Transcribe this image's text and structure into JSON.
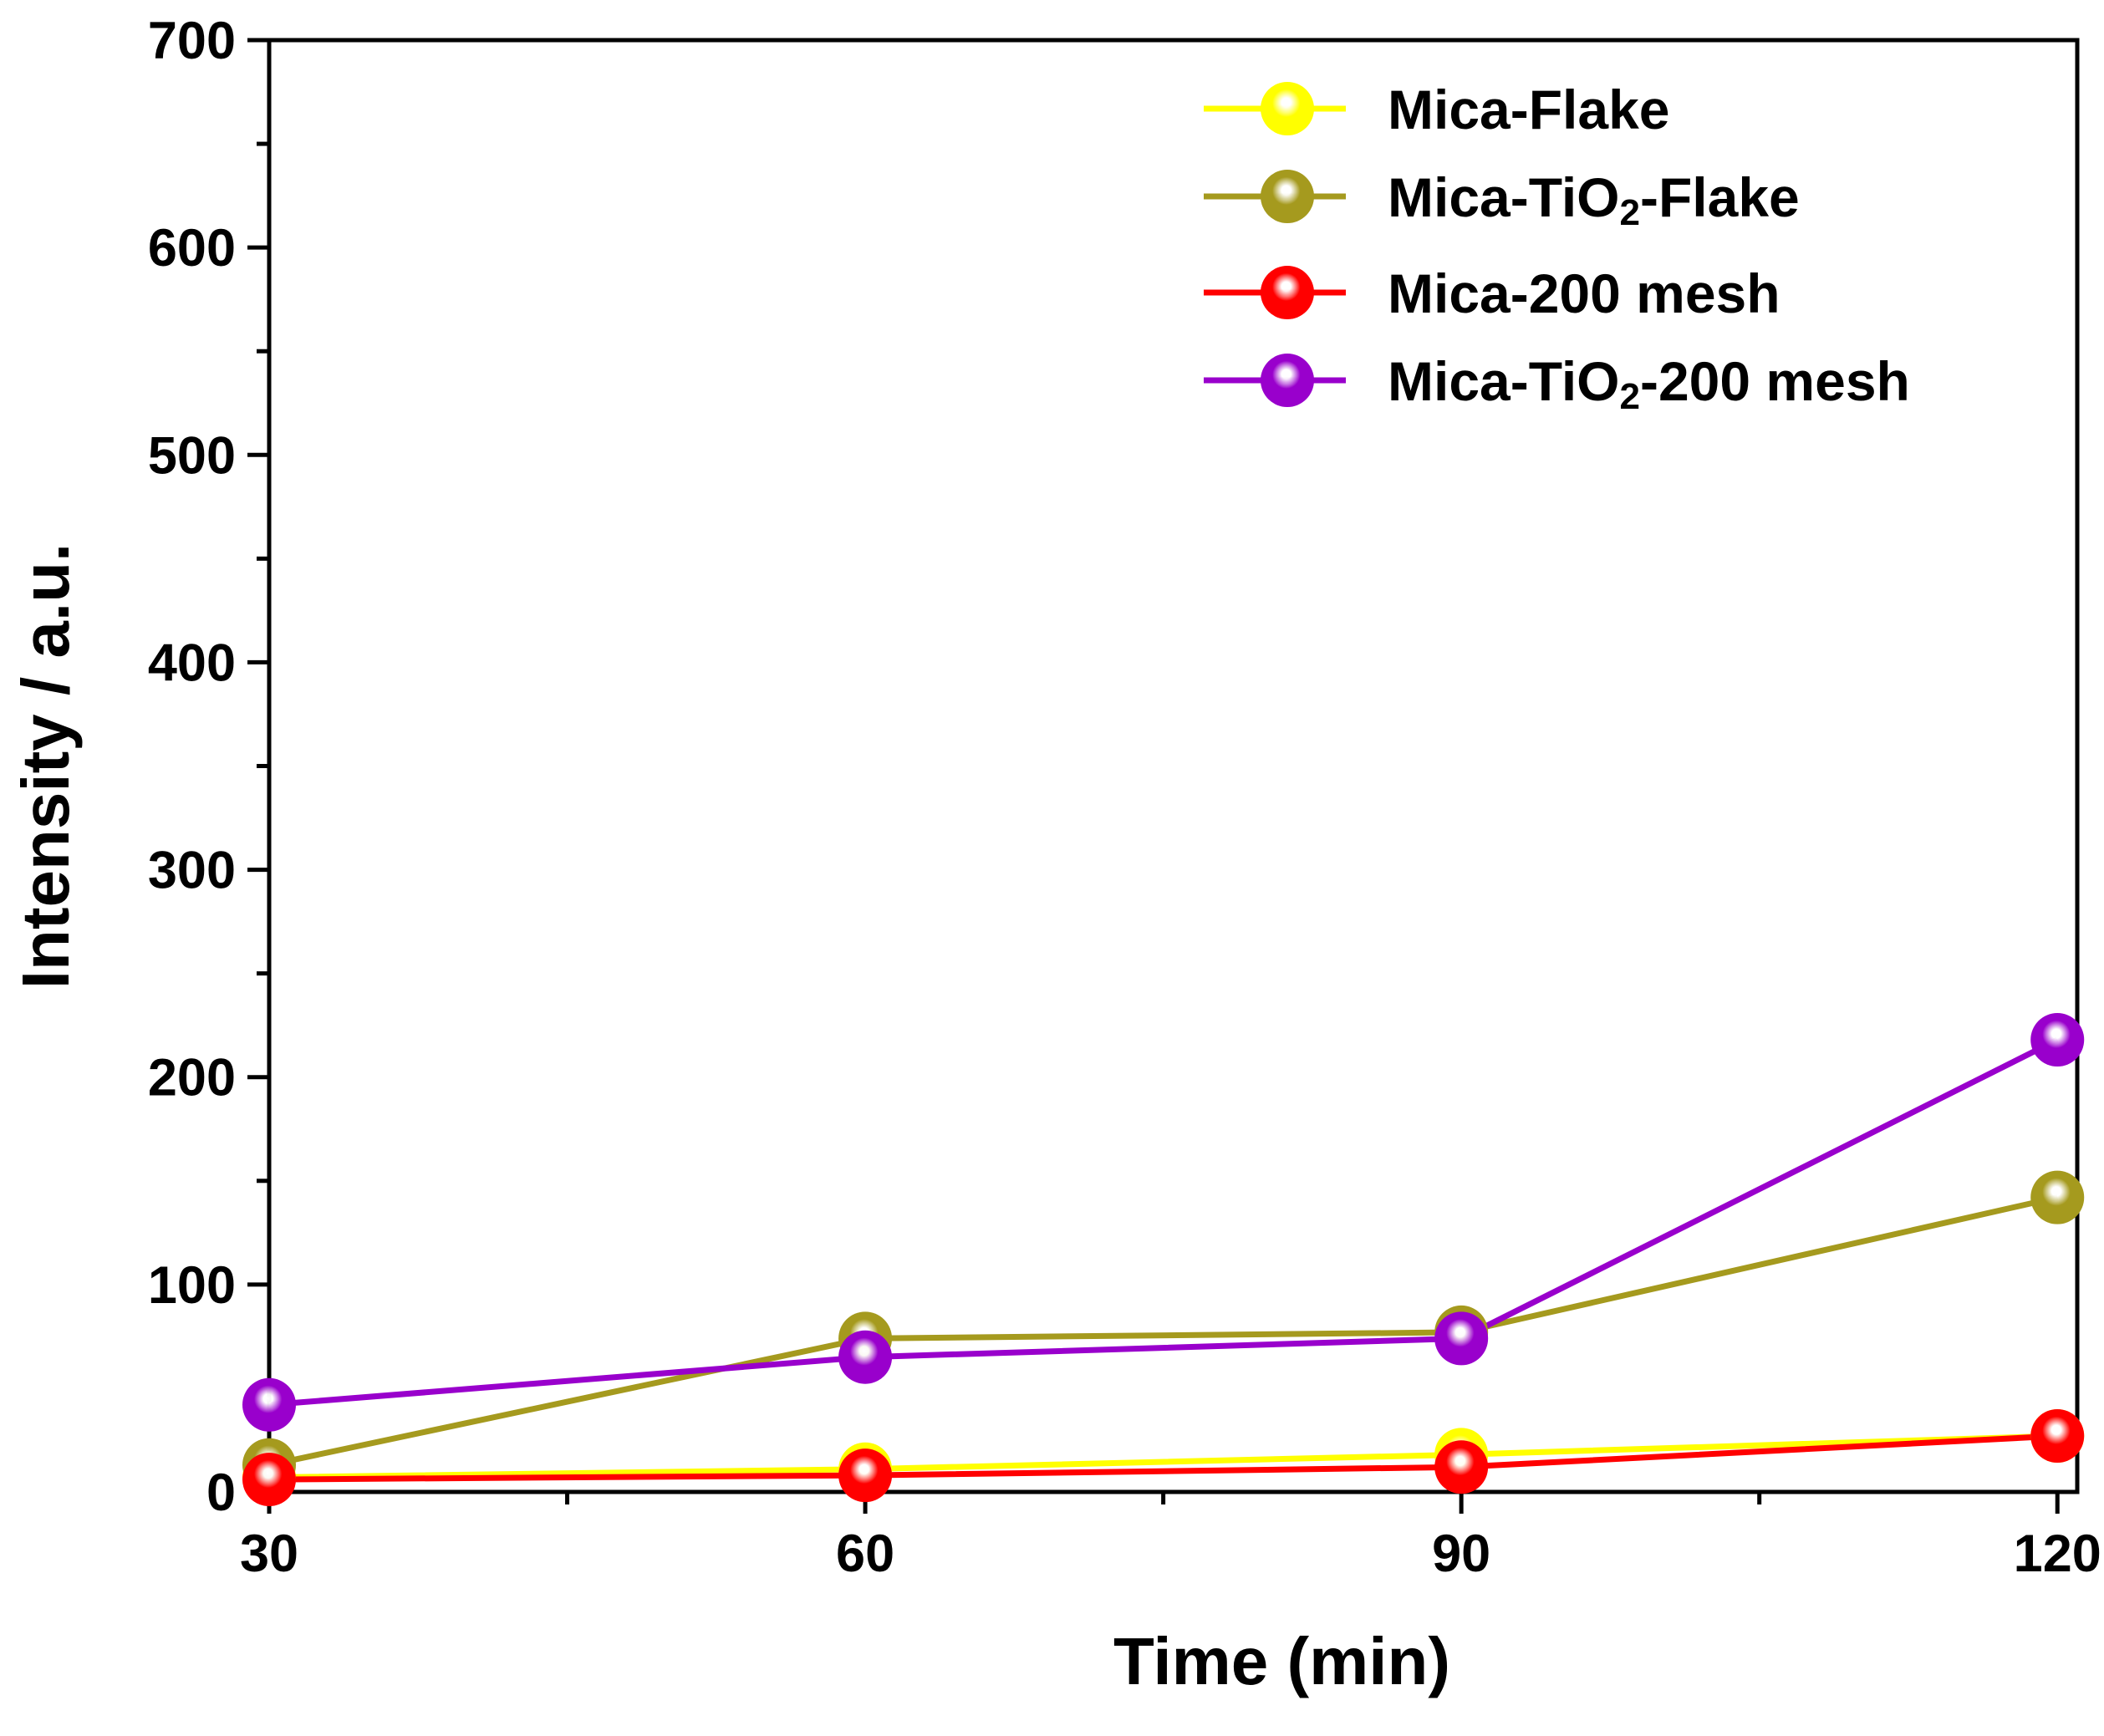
{
  "chart_data": {
    "type": "line",
    "title": "",
    "xlabel": "Time (min)",
    "ylabel": "Intensity / a.u.",
    "x": [
      30,
      60,
      90,
      120
    ],
    "xlim": [
      30,
      121
    ],
    "ylim": [
      0,
      700
    ],
    "xticks": [
      30,
      60,
      90,
      120
    ],
    "xtick_labels": [
      "30",
      "60",
      "90",
      "120"
    ],
    "yticks": [
      0,
      100,
      200,
      300,
      400,
      500,
      600,
      700
    ],
    "ytick_labels": [
      "0",
      "100",
      "200",
      "300",
      "400",
      "500",
      "600",
      "700"
    ],
    "grid": false,
    "legend_position": "top-right",
    "series": [
      {
        "name": "Mica-Flake",
        "legend_parts": [
          "Mica-Flake"
        ],
        "color": "#FFFF00",
        "values": [
          7,
          11,
          18,
          27
        ]
      },
      {
        "name": "Mica-TiO2-Flake",
        "legend_parts": [
          "Mica-TiO",
          "2",
          "-Flake"
        ],
        "color": "#A59A1E",
        "values": [
          13,
          74,
          77,
          142
        ]
      },
      {
        "name": "Mica-200 mesh",
        "legend_parts": [
          "Mica-200 mesh"
        ],
        "color": "#FF0000",
        "values": [
          6,
          8,
          12,
          27
        ]
      },
      {
        "name": "Mica-TiO2-200 mesh",
        "legend_parts": [
          "Mica-TiO",
          "2",
          "-200 mesh"
        ],
        "color": "#9900CC",
        "values": [
          42,
          65,
          74,
          218
        ]
      }
    ]
  }
}
